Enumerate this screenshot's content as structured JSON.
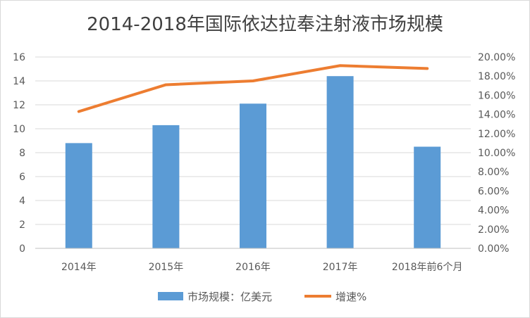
{
  "chart_data": {
    "type": "bar",
    "title": "2014-2018年国际依达拉奉注射液市场规模",
    "categories": [
      "2014年",
      "2015年",
      "2016年",
      "2017年",
      "2018年前6个月"
    ],
    "series": [
      {
        "name": "市场规模：亿美元",
        "type": "bar",
        "axis": "left",
        "color": "#5b9bd5",
        "values": [
          8.8,
          10.3,
          12.1,
          14.4,
          8.5
        ]
      },
      {
        "name": "增速%",
        "type": "line",
        "axis": "right",
        "color": "#ed7d31",
        "values": [
          14.3,
          17.1,
          17.5,
          19.1,
          18.8
        ]
      }
    ],
    "y_left": {
      "min": 0,
      "max": 16,
      "ticks": [
        "0",
        "2",
        "4",
        "6",
        "8",
        "10",
        "12",
        "14",
        "16"
      ]
    },
    "y_right": {
      "min": 0,
      "max": 20,
      "ticks": [
        "0.00%",
        "2.00%",
        "4.00%",
        "6.00%",
        "8.00%",
        "10.00%",
        "12.00%",
        "14.00%",
        "16.00%",
        "18.00%",
        "20.00%"
      ]
    },
    "grid": true,
    "legend_position": "bottom"
  }
}
